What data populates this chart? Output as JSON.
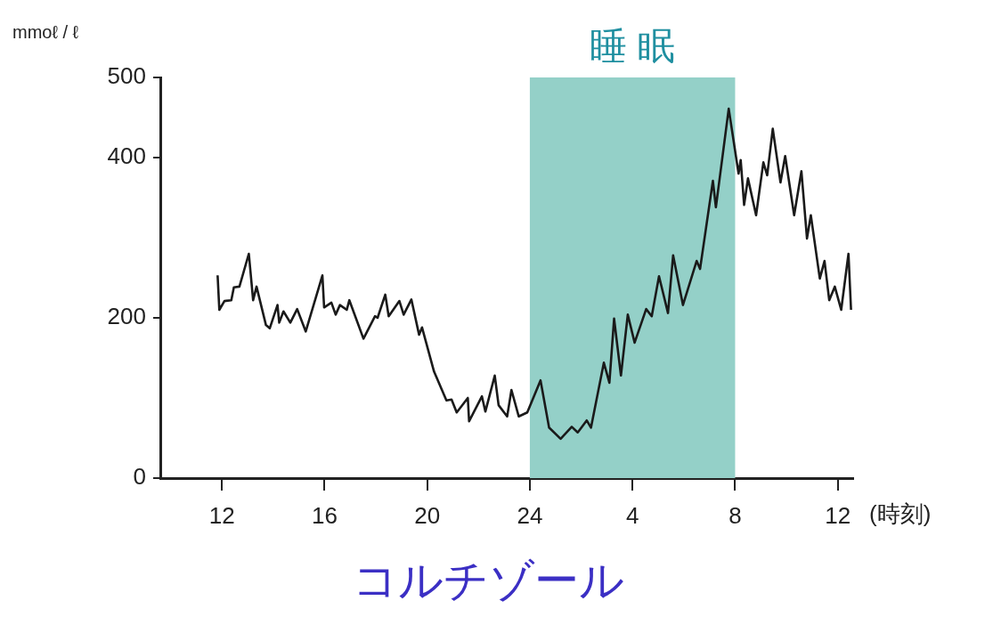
{
  "chart_data": {
    "type": "line",
    "title": "コルチゾール",
    "ylabel": "mmoℓ / ℓ",
    "xlabel": "(時刻)",
    "xlim": [
      "--01-01T09:36",
      "--01-02T12:36"
    ],
    "xticks": [
      {
        "value": "--01-01T12:00",
        "label": "12"
      },
      {
        "value": "--01-01T16:00",
        "label": "16"
      },
      {
        "value": "--01-01T20:00",
        "label": "20"
      },
      {
        "value": "--01-02T00:00",
        "label": "24"
      },
      {
        "value": "--01-02T04:00",
        "label": "4"
      },
      {
        "value": "--01-02T08:00",
        "label": "8"
      },
      {
        "value": "--01-02T12:00",
        "label": "12"
      }
    ],
    "ylim": [
      0,
      500
    ],
    "yticks": [
      0,
      200,
      400,
      500
    ],
    "grid": false,
    "legend": false,
    "marker": "none",
    "line_style": "solid",
    "bands": [
      {
        "axis": "x",
        "from": "--01-02T00:00",
        "to": "--01-02T08:00",
        "label": "睡 眠",
        "color": "#94d0c8"
      }
    ],
    "series": [
      {
        "color": "#1a1a1a",
        "x": [
          "--01-01T11:50",
          "--01-01T11:54",
          "--01-01T12:06",
          "--01-01T12:22",
          "--01-01T12:28",
          "--01-01T12:41",
          "--01-01T13:03",
          "--01-01T13:13",
          "--01-01T13:21",
          "--01-01T13:43",
          "--01-01T13:52",
          "--01-01T14:10",
          "--01-01T14:14",
          "--01-01T14:24",
          "--01-01T14:40",
          "--01-01T14:56",
          "--01-01T15:16",
          "--01-01T15:55",
          "--01-01T15:59",
          "--01-01T16:16",
          "--01-01T16:26",
          "--01-01T16:36",
          "--01-01T16:52",
          "--01-01T16:58",
          "--01-01T17:31",
          "--01-01T17:58",
          "--01-01T18:04",
          "--01-01T18:22",
          "--01-01T18:30",
          "--01-01T18:55",
          "--01-01T19:05",
          "--01-01T19:23",
          "--01-01T19:41",
          "--01-01T19:48",
          "--01-01T20:16",
          "--01-01T20:45",
          "--01-01T20:57",
          "--01-01T21:09",
          "--01-01T21:35",
          "--01-01T21:38",
          "--01-01T22:08",
          "--01-01T22:16",
          "--01-01T22:38",
          "--01-01T22:47",
          "--01-01T23:07",
          "--01-01T23:17",
          "--01-01T23:34",
          "--01-01T23:54",
          "--01-02T00:25",
          "--01-02T00:45",
          "--01-02T01:12",
          "--01-02T01:38",
          "--01-02T01:52",
          "--01-02T02:13",
          "--01-02T02:23",
          "--01-02T02:53",
          "--01-02T03:06",
          "--01-02T03:17",
          "--01-02T03:33",
          "--01-02T03:49",
          "--01-02T04:05",
          "--01-02T04:32",
          "--01-02T04:45",
          "--01-02T05:02",
          "--01-02T05:23",
          "--01-02T05:35",
          "--01-02T05:58",
          "--01-02T06:30",
          "--01-02T06:38",
          "--01-02T07:08",
          "--01-02T07:15",
          "--01-02T07:45",
          "--01-02T08:08",
          "--01-02T08:13",
          "--01-02T08:21",
          "--01-02T08:30",
          "--01-02T08:49",
          "--01-02T09:06",
          "--01-02T09:15",
          "--01-02T09:28",
          "--01-02T09:46",
          "--01-02T09:57",
          "--01-02T10:18",
          "--01-02T10:35",
          "--01-02T10:48",
          "--01-02T10:57",
          "--01-02T11:18",
          "--01-02T11:29",
          "--01-02T11:40",
          "--01-02T11:53",
          "--01-02T12:08",
          "--01-02T12:25",
          "--01-02T12:31"
        ],
        "values": [
          253,
          210,
          221,
          222,
          238,
          239,
          280,
          222,
          239,
          191,
          187,
          216,
          194,
          208,
          194,
          211,
          183,
          253,
          213,
          219,
          204,
          216,
          210,
          222,
          174,
          202,
          200,
          229,
          202,
          221,
          204,
          223,
          179,
          188,
          133,
          97,
          98,
          82,
          100,
          71,
          102,
          83,
          128,
          91,
          77,
          110,
          77,
          82,
          122,
          63,
          49,
          64,
          57,
          72,
          63,
          144,
          119,
          199,
          128,
          204,
          169,
          211,
          202,
          252,
          206,
          278,
          216,
          271,
          261,
          371,
          338,
          461,
          380,
          397,
          341,
          374,
          328,
          394,
          378,
          436,
          369,
          402,
          328,
          383,
          299,
          328,
          249,
          271,
          222,
          239,
          210,
          280,
          210
        ]
      }
    ]
  }
}
